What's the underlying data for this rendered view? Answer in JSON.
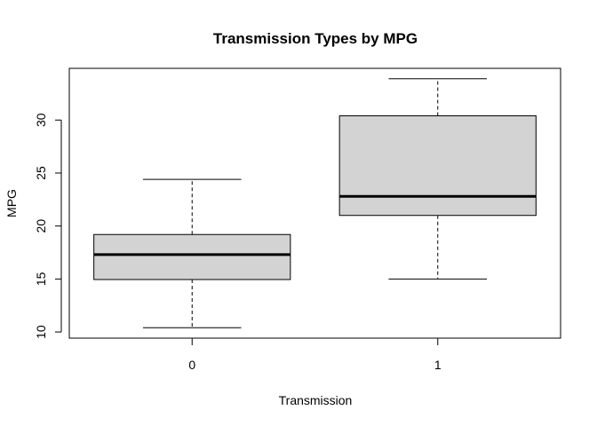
{
  "chart_data": {
    "type": "boxplot",
    "title": "Transmission Types by MPG",
    "xlabel": "Transmission",
    "ylabel": "MPG",
    "categories": [
      "0",
      "1"
    ],
    "boxes": [
      {
        "category": "0",
        "min": 10.4,
        "q1": 14.95,
        "median": 17.3,
        "q3": 19.2,
        "max": 24.4
      },
      {
        "category": "1",
        "min": 15.0,
        "q1": 21.0,
        "median": 22.8,
        "q3": 30.4,
        "max": 33.9
      }
    ],
    "yticks": [
      10,
      15,
      20,
      25,
      30
    ],
    "ylim": [
      9.42,
      34.88
    ],
    "grid": false,
    "legend": "none",
    "box_fill": "#d3d3d3",
    "line_color": "#000000"
  }
}
